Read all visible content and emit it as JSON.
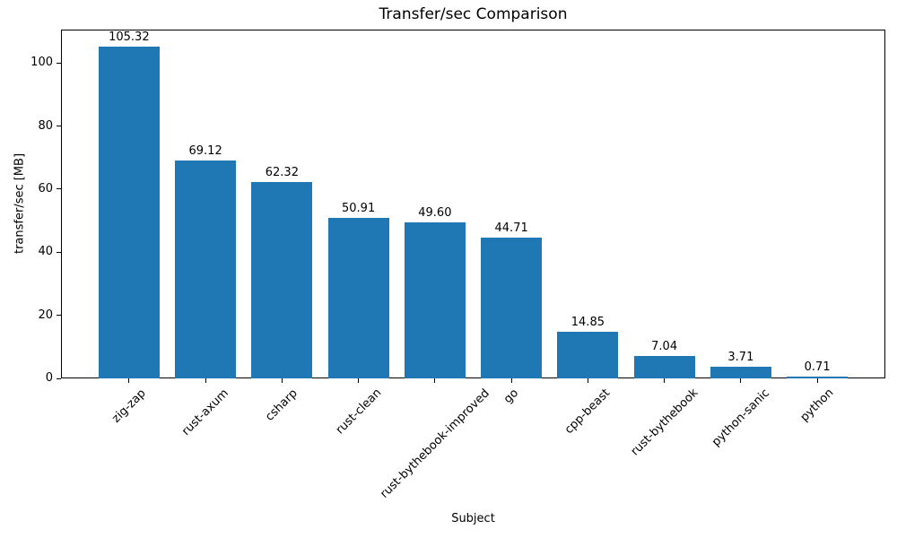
{
  "chart_data": {
    "type": "bar",
    "title": "Transfer/sec Comparison",
    "xlabel": "Subject",
    "ylabel": "transfer/sec [MB]",
    "categories": [
      "zig-zap",
      "rust-axum",
      "csharp",
      "rust-clean",
      "rust-bythebook-improved",
      "go",
      "cpp-beast",
      "rust-bythebook",
      "python-sanic",
      "python"
    ],
    "values": [
      105.32,
      69.12,
      62.32,
      50.91,
      49.6,
      44.71,
      14.85,
      7.04,
      3.71,
      0.71
    ],
    "value_labels": [
      "105.32",
      "69.12",
      "62.32",
      "50.91",
      "49.60",
      "44.71",
      "14.85",
      "7.04",
      "3.71",
      "0.71"
    ],
    "yticks": [
      0,
      20,
      40,
      60,
      80,
      100
    ],
    "ylim": [
      0,
      110.6
    ],
    "bar_color": "#1f77b4",
    "text_color": "#000000",
    "grid": false,
    "legend_position": "none",
    "x_tick_rotation_deg": 45
  }
}
